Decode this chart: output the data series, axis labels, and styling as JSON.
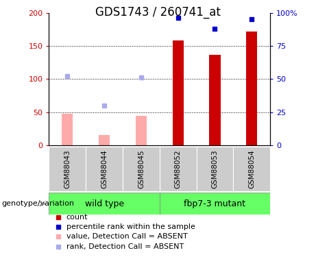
{
  "title": "GDS1743 / 260741_at",
  "categories": [
    "GSM88043",
    "GSM88044",
    "GSM88045",
    "GSM88052",
    "GSM88053",
    "GSM88054"
  ],
  "group1_label": "wild type",
  "group2_label": "fbp7-3 mutant",
  "genotype_label": "genotype/variation",
  "count_values": [
    null,
    null,
    null,
    158,
    137,
    172
  ],
  "rank_values": [
    null,
    null,
    null,
    96,
    88,
    95
  ],
  "absent_value_values": [
    47,
    15,
    44,
    null,
    null,
    null
  ],
  "absent_rank_values": [
    52,
    30,
    51,
    null,
    null,
    null
  ],
  "ylim_left": [
    0,
    200
  ],
  "ylim_right": [
    0,
    100
  ],
  "yticks_left": [
    0,
    50,
    100,
    150,
    200
  ],
  "yticks_right": [
    0,
    25,
    50,
    75,
    100
  ],
  "ytick_labels_right": [
    "0",
    "25",
    "50",
    "75",
    "100%"
  ],
  "color_count": "#cc0000",
  "color_rank": "#0000cc",
  "color_absent_value": "#ffaaaa",
  "color_absent_rank": "#aaaaee",
  "bar_width": 0.3,
  "group_bg": "#66ff66",
  "xtick_bg": "#cccccc",
  "title_fontsize": 12,
  "axis_fontsize": 8,
  "legend_fontsize": 8,
  "grid_yticks": [
    50,
    100,
    150
  ]
}
